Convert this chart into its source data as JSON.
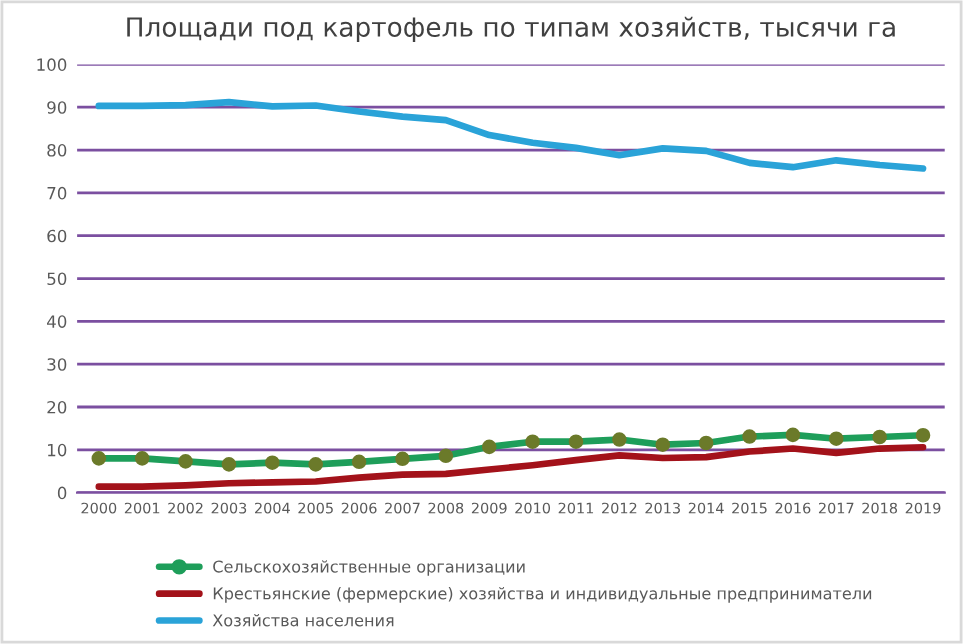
{
  "chart_data": {
    "type": "line",
    "title": "Площади под картофель по типам хозяйств, тысячи га",
    "categories": [
      "2000",
      "2001",
      "2002",
      "2003",
      "2004",
      "2005",
      "2006",
      "2007",
      "2008",
      "2009",
      "2010",
      "2011",
      "2012",
      "2013",
      "2014",
      "2015",
      "2016",
      "2017",
      "2018",
      "2019"
    ],
    "series": [
      {
        "name": "Сельскохозяйственные организации",
        "color": "#1e9e5a",
        "marker": "circle",
        "values": [
          8.0,
          8.0,
          7.3,
          6.6,
          7.0,
          6.6,
          7.2,
          7.9,
          8.6,
          10.7,
          11.9,
          11.9,
          12.4,
          11.2,
          11.6,
          13.1,
          13.5,
          12.6,
          13.0,
          13.4
        ]
      },
      {
        "name": "Крестьянские (фермерские) хозяйства и индивидуальные предприниматели",
        "color": "#a3121a",
        "marker": "none",
        "values": [
          1.4,
          1.4,
          1.7,
          2.2,
          2.4,
          2.6,
          3.5,
          4.2,
          4.4,
          5.4,
          6.4,
          7.6,
          8.7,
          8.1,
          8.3,
          9.6,
          10.3,
          9.3,
          10.3,
          10.6
        ]
      },
      {
        "name": "Хозяйства населения",
        "color": "#2aa3d8",
        "marker": "none",
        "values": [
          90.3,
          90.3,
          90.5,
          91.2,
          90.2,
          90.4,
          89.0,
          87.8,
          87.0,
          83.5,
          81.7,
          80.5,
          78.8,
          80.4,
          79.8,
          77.0,
          76.0,
          77.6,
          76.5,
          75.7
        ]
      }
    ],
    "ylim": [
      0,
      100
    ],
    "yticks": [
      0,
      10,
      20,
      30,
      40,
      50,
      60,
      70,
      80,
      90,
      100
    ],
    "grid": "y",
    "legend": "bottom"
  }
}
